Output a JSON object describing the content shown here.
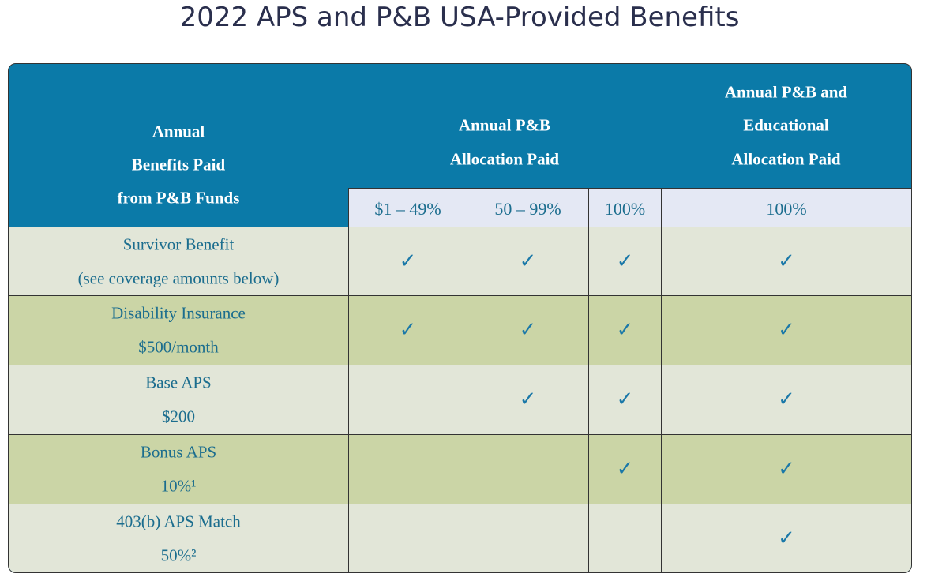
{
  "title": "2022 APS and P&B USA-Provided Benefits",
  "table": {
    "header": {
      "label_lines": [
        "Annual",
        "Benefits Paid",
        "from P&B Funds"
      ],
      "group1_lines": [
        "Annual P&B",
        "Allocation Paid"
      ],
      "group2_lines": [
        "Annual P&B and",
        "Educational",
        "Allocation Paid"
      ],
      "subheaders": [
        "$1 – 49%",
        "50 – 99%",
        "100%",
        "100%"
      ]
    },
    "rows": [
      {
        "lines": [
          "Survivor Benefit",
          "(see coverage amounts below)"
        ],
        "cells": [
          "✓",
          "✓",
          "✓",
          "✓"
        ]
      },
      {
        "lines": [
          "Disability Insurance",
          "$500/month"
        ],
        "cells": [
          "✓",
          "✓",
          "✓",
          "✓"
        ]
      },
      {
        "lines": [
          "Base APS",
          "$200"
        ],
        "cells": [
          null,
          "✓",
          "✓",
          "✓"
        ]
      },
      {
        "lines": [
          "Bonus APS",
          "10%¹"
        ],
        "cells": [
          null,
          null,
          "✓",
          "✓"
        ]
      },
      {
        "lines": [
          "403(b) APS Match",
          "50%²"
        ],
        "cells": [
          null,
          null,
          null,
          "✓"
        ]
      }
    ]
  }
}
